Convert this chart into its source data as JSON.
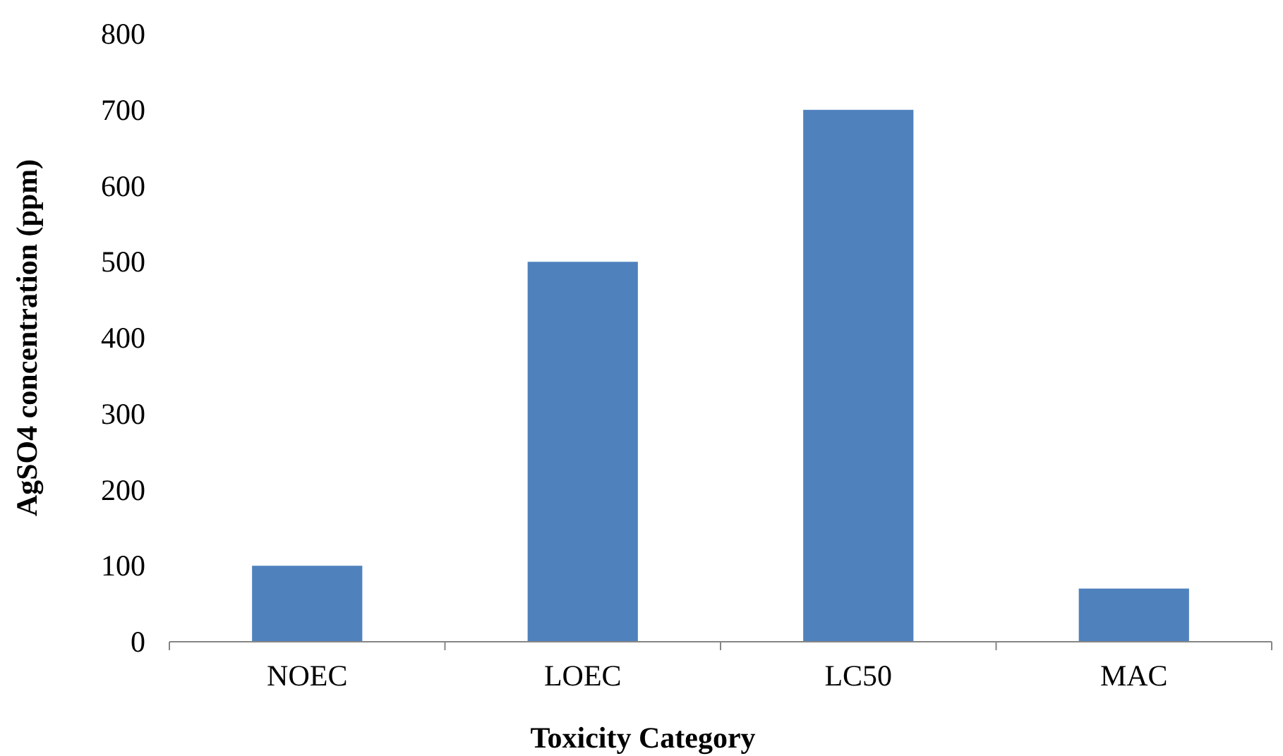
{
  "chart_data": {
    "type": "bar",
    "xlabel": "Toxicity Category",
    "ylabel": "AgSO4 concentration (ppm)",
    "categories": [
      "NOEC",
      "LOEC",
      "LC50",
      "MAC"
    ],
    "values": [
      100,
      500,
      700,
      70
    ],
    "color": "#4f81bd",
    "ylim": [
      0,
      800
    ],
    "yticks": [
      0,
      100,
      200,
      300,
      400,
      500,
      600,
      700,
      800
    ],
    "grid": false
  }
}
